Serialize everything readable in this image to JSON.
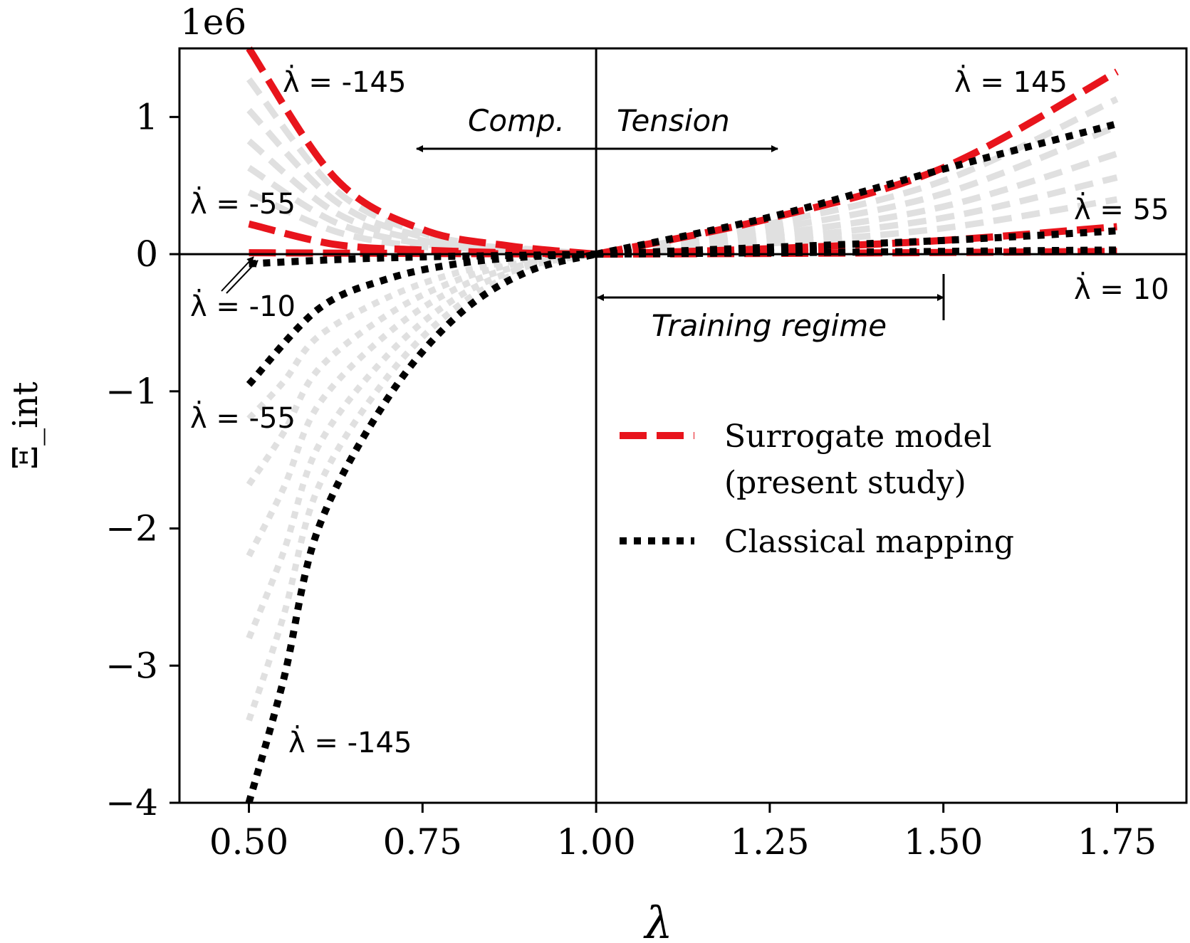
{
  "chart_data": {
    "type": "line",
    "title": "",
    "xlabel": "λ",
    "ylabel": "Ξ_int",
    "y_multiplier": "1e6",
    "xlim": [
      0.4,
      1.85
    ],
    "ylim": [
      -4.0,
      1.5
    ],
    "x_ticks": [
      0.5,
      0.75,
      1.0,
      1.25,
      1.5,
      1.75
    ],
    "x_tick_labels": [
      "0.50",
      "0.75",
      "1.00",
      "1.25",
      "1.50",
      "1.75"
    ],
    "y_ticks": [
      -4,
      -3,
      -2,
      -1,
      0,
      1
    ],
    "y_tick_labels": [
      "−4",
      "−3",
      "−2",
      "−1",
      "0",
      "1"
    ],
    "lambda_dot_values": [
      -145,
      -55,
      -10,
      10,
      55,
      145
    ],
    "series": [
      {
        "name": "Surrogate model, λ̇ = 145",
        "style": "surrogate",
        "x": [
          1.0,
          1.25,
          1.5,
          1.75
        ],
        "values": [
          0.0,
          0.26,
          0.63,
          1.33
        ]
      },
      {
        "name": "Surrogate model, λ̇ = 55",
        "style": "surrogate",
        "x": [
          1.0,
          1.25,
          1.5,
          1.75
        ],
        "values": [
          0.0,
          0.04,
          0.1,
          0.2
        ]
      },
      {
        "name": "Surrogate model, λ̇ = 10",
        "style": "surrogate",
        "x": [
          1.0,
          1.25,
          1.5,
          1.75
        ],
        "values": [
          0.0,
          0.005,
          0.012,
          0.02
        ]
      },
      {
        "name": "Surrogate model, λ̇ = -145",
        "style": "surrogate",
        "x": [
          0.5,
          0.625,
          0.75,
          0.875,
          1.0
        ],
        "values": [
          1.5,
          0.55,
          0.18,
          0.06,
          0.0
        ]
      },
      {
        "name": "Surrogate model, λ̇ = -55",
        "style": "surrogate",
        "x": [
          0.5,
          0.625,
          0.75,
          0.875,
          1.0
        ],
        "values": [
          0.22,
          0.07,
          0.03,
          0.01,
          0.0
        ]
      },
      {
        "name": "Surrogate model, λ̇ = -10",
        "style": "surrogate",
        "x": [
          0.5,
          0.75,
          1.0
        ],
        "values": [
          0.01,
          0.005,
          0.0
        ]
      },
      {
        "name": "Classical mapping, λ̇ = 145",
        "style": "classical",
        "x": [
          1.0,
          1.25,
          1.5,
          1.75
        ],
        "values": [
          0.0,
          0.27,
          0.62,
          0.95
        ]
      },
      {
        "name": "Classical mapping, λ̇ = 55",
        "style": "classical",
        "x": [
          1.0,
          1.25,
          1.5,
          1.75
        ],
        "values": [
          0.0,
          0.05,
          0.1,
          0.17
        ]
      },
      {
        "name": "Classical mapping, λ̇ = 10",
        "style": "classical",
        "x": [
          1.0,
          1.25,
          1.5,
          1.75
        ],
        "values": [
          0.0,
          0.01,
          0.02,
          0.03
        ]
      },
      {
        "name": "Classical mapping, λ̇ = -145",
        "style": "classical",
        "x": [
          0.5,
          0.55,
          0.6,
          0.7,
          0.8,
          0.9,
          1.0
        ],
        "values": [
          -4.0,
          -3.1,
          -2.0,
          -1.05,
          -0.45,
          -0.13,
          0.0
        ]
      },
      {
        "name": "Classical mapping, λ̇ = -55",
        "style": "classical",
        "x": [
          0.5,
          0.6,
          0.7,
          0.8,
          0.9,
          1.0
        ],
        "values": [
          -0.95,
          -0.4,
          -0.18,
          -0.07,
          -0.02,
          0.0
        ]
      },
      {
        "name": "Classical mapping, λ̇ = -10",
        "style": "classical",
        "x": [
          0.5,
          0.625,
          0.75,
          0.875,
          1.0
        ],
        "values": [
          -0.07,
          -0.04,
          -0.02,
          -0.01,
          0.0
        ]
      }
    ],
    "annotations": {
      "lambda_dot_prefix": "λ̇",
      "labels": [
        {
          "id": "neg145_top",
          "text": " = -145"
        },
        {
          "id": "neg55_top",
          "text": " = -55"
        },
        {
          "id": "neg10",
          "text": " = -10"
        },
        {
          "id": "neg55_bottom",
          "text": " = -55"
        },
        {
          "id": "neg145_bottom",
          "text": " = -145"
        },
        {
          "id": "pos145",
          "text": " = 145"
        },
        {
          "id": "pos55",
          "text": " = 55"
        },
        {
          "id": "pos10",
          "text": " = 10"
        }
      ],
      "compression_label": "Comp.",
      "tension_label": "Tension",
      "training_regime_label": "Training regime",
      "training_regime_range": [
        1.0,
        1.5
      ]
    },
    "legend": {
      "placement": "center-right",
      "entries": [
        {
          "style": "surrogate",
          "line1": "Surrogate model",
          "line2": "(present study)"
        },
        {
          "style": "classical",
          "line1": "Classical mapping",
          "line2": ""
        }
      ]
    },
    "colors": {
      "surrogate": "#e8141c",
      "classical": "#000000",
      "background_curves": "#e0e0e0"
    }
  }
}
